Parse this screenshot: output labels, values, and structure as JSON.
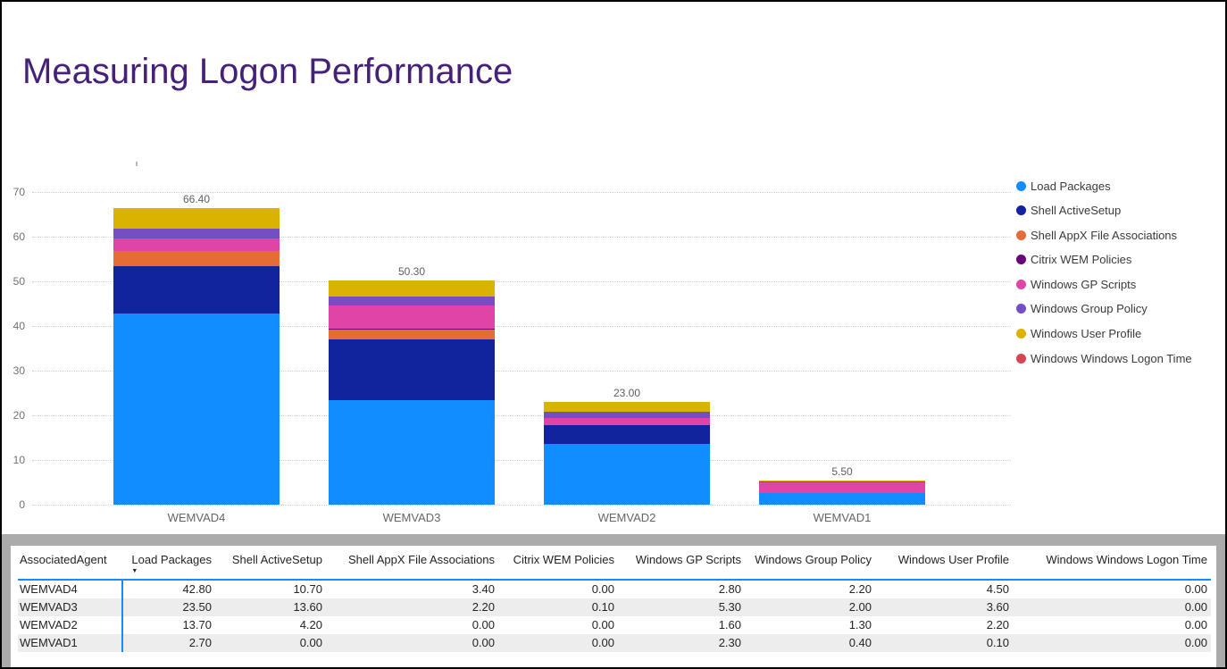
{
  "page": {
    "title": "Measuring Logon Performance"
  },
  "chart_data": {
    "type": "bar",
    "stacked": true,
    "title": "",
    "categories": [
      "WEMVAD4",
      "WEMVAD3",
      "WEMVAD2",
      "WEMVAD1"
    ],
    "series": [
      {
        "name": "Load Packages",
        "color": "#118DFF",
        "values": [
          42.8,
          23.5,
          13.7,
          2.7
        ]
      },
      {
        "name": "Shell ActiveSetup",
        "color": "#12239E",
        "values": [
          10.7,
          13.6,
          4.2,
          0.0
        ]
      },
      {
        "name": "Shell AppX File Associations",
        "color": "#E66C37",
        "values": [
          3.4,
          2.2,
          0.0,
          0.0
        ]
      },
      {
        "name": "Citrix WEM Policies",
        "color": "#6B007B",
        "values": [
          0.0,
          0.1,
          0.0,
          0.0
        ]
      },
      {
        "name": "Windows GP Scripts",
        "color": "#E044A7",
        "values": [
          2.8,
          5.3,
          1.6,
          2.3
        ]
      },
      {
        "name": "Windows Group Policy",
        "color": "#744EC2",
        "values": [
          2.2,
          2.0,
          1.3,
          0.4
        ]
      },
      {
        "name": "Windows User Profile",
        "color": "#D9B300",
        "values": [
          4.5,
          3.6,
          2.2,
          0.1
        ]
      },
      {
        "name": "Windows Windows Logon Time",
        "color": "#D64550",
        "values": [
          0.0,
          0.0,
          0.0,
          0.0
        ]
      }
    ],
    "total_labels": [
      "66.40",
      "50.30",
      "23.00",
      "5.50"
    ],
    "xlabel": "",
    "ylabel": "",
    "y_axis": {
      "min": 0,
      "max": 70,
      "step": 10,
      "tick_labels": [
        "0",
        "10",
        "20",
        "30",
        "40",
        "50",
        "60",
        "70"
      ]
    },
    "grid": "horizontal-dotted",
    "legend_position": "right"
  },
  "table": {
    "columns": [
      "AssociatedAgent",
      "Load Packages",
      "Shell ActiveSetup",
      "Shell AppX File Associations",
      "Citrix WEM Policies",
      "Windows GP Scripts",
      "Windows Group Policy",
      "Windows User Profile",
      "Windows Windows Logon Time"
    ],
    "sorted_column": "Load Packages",
    "sort_direction": "descending",
    "sort_icon": "▼",
    "rows": [
      [
        "WEMVAD4",
        "42.80",
        "10.70",
        "3.40",
        "0.00",
        "2.80",
        "2.20",
        "4.50",
        "0.00"
      ],
      [
        "WEMVAD3",
        "23.50",
        "13.60",
        "2.20",
        "0.10",
        "5.30",
        "2.00",
        "3.60",
        "0.00"
      ],
      [
        "WEMVAD2",
        "13.70",
        "4.20",
        "0.00",
        "0.00",
        "1.60",
        "1.30",
        "2.20",
        "0.00"
      ],
      [
        "WEMVAD1",
        "2.70",
        "0.00",
        "0.00",
        "0.00",
        "2.30",
        "0.40",
        "0.10",
        "0.00"
      ]
    ]
  },
  "colors": {
    "accent": "#118DFF",
    "title": "#452178",
    "scrollbar": "#ABABAB"
  }
}
